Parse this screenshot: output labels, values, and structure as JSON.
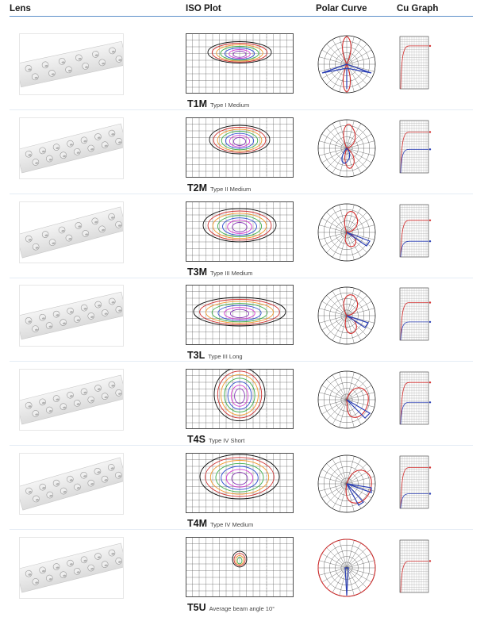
{
  "header": {
    "lens": "Lens",
    "iso_plot": "ISO Plot",
    "polar_curve": "Polar Curve",
    "cu_graph": "Cu Graph"
  },
  "colors": {
    "rule_blue": "#5b8fc9",
    "polar_red": "#d32f2f",
    "polar_blue": "#2b3fb5",
    "iso_black": "#111111",
    "iso_red": "#d0302f",
    "iso_orange": "#f29a2e",
    "iso_green": "#3fae49",
    "iso_blue": "#2f4fd0",
    "iso_magenta": "#d33bd1",
    "iso_purple": "#8a3ab9"
  },
  "rows": [
    {
      "code": "T1M",
      "desc": "Type I   Medium"
    },
    {
      "code": "T2M",
      "desc": "Type II  Medium"
    },
    {
      "code": "T3M",
      "desc": "Type III  Medium"
    },
    {
      "code": "T3L",
      "desc": "Type III  Long"
    },
    {
      "code": "T4S",
      "desc": "Type IV  Short"
    },
    {
      "code": "T4M",
      "desc": "Type IV  Medium"
    },
    {
      "code": "T5U",
      "desc": "Average beam  angle 10°"
    }
  ]
}
